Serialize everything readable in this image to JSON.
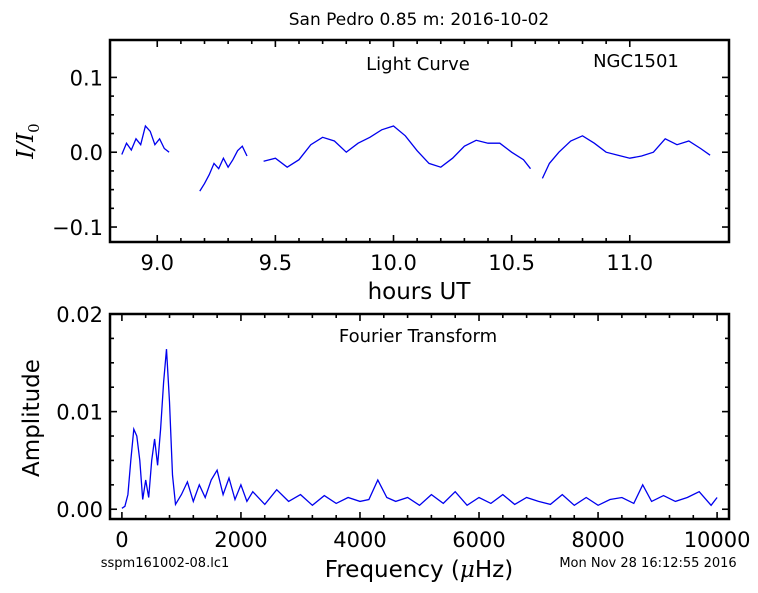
{
  "page": {
    "title": "San Pedro 0.85 m:  2016-10-02",
    "footer_left": "sspm161002-08.lc1",
    "footer_right": "Mon Nov 28 16:12:55 2016"
  },
  "colors": {
    "series": "#0000ee",
    "axes": "#000000"
  },
  "chart_data": [
    {
      "type": "line",
      "title": "Light Curve",
      "annotation": "NGC1501",
      "xlabel": "hours UT",
      "ylabel": "I/I",
      "ylabel_sub": "0",
      "xlim": [
        8.8,
        11.42
      ],
      "ylim": [
        -0.12,
        0.15
      ],
      "xticks": [
        9.0,
        9.5,
        10.0,
        10.5,
        11.0
      ],
      "xtick_labels": [
        "9.0",
        "9.5",
        "10.0",
        "10.5",
        "11.0"
      ],
      "yticks": [
        -0.1,
        0.0,
        0.1
      ],
      "ytick_labels": [
        "−0.1",
        "0.0",
        "0.1"
      ],
      "segments": [
        {
          "x": [
            8.85,
            8.87,
            8.89,
            8.91,
            8.93,
            8.95,
            8.97,
            8.99,
            9.01,
            9.03,
            9.05
          ],
          "y": [
            -0.003,
            0.012,
            0.003,
            0.018,
            0.01,
            0.035,
            0.028,
            0.01,
            0.018,
            0.005,
            0.0
          ]
        },
        {
          "x": [
            9.18,
            9.2,
            9.22,
            9.24,
            9.26,
            9.28,
            9.3,
            9.32,
            9.34,
            9.36,
            9.38
          ],
          "y": [
            -0.052,
            -0.042,
            -0.03,
            -0.015,
            -0.022,
            -0.008,
            -0.02,
            -0.01,
            0.002,
            0.008,
            -0.005
          ]
        },
        {
          "x": [
            9.45,
            9.5,
            9.55,
            9.6,
            9.65,
            9.7,
            9.75,
            9.8,
            9.85,
            9.9,
            9.95,
            10.0,
            10.05,
            10.1,
            10.15,
            10.2,
            10.25,
            10.3,
            10.35,
            10.4,
            10.45,
            10.5,
            10.55,
            10.58
          ],
          "y": [
            -0.012,
            -0.008,
            -0.02,
            -0.01,
            0.01,
            0.02,
            0.015,
            0.0,
            0.012,
            0.02,
            0.03,
            0.035,
            0.022,
            0.002,
            -0.015,
            -0.02,
            -0.008,
            0.008,
            0.016,
            0.012,
            0.012,
            0.0,
            -0.01,
            -0.022
          ]
        },
        {
          "x": [
            10.63,
            10.66,
            10.7,
            10.75,
            10.8,
            10.85,
            10.9,
            10.95,
            11.0,
            11.05,
            11.1,
            11.15,
            11.2,
            11.25,
            11.3,
            11.34
          ],
          "y": [
            -0.035,
            -0.015,
            0.0,
            0.015,
            0.022,
            0.012,
            0.0,
            -0.004,
            -0.008,
            -0.005,
            0.0,
            0.018,
            0.01,
            0.015,
            0.005,
            -0.004
          ]
        }
      ]
    },
    {
      "type": "line",
      "title": "Fourier Transform",
      "xlabel": "Frequency (",
      "xlabel_mu": "μ",
      "xlabel_tail": "Hz)",
      "ylabel": "Amplitude",
      "xlim": [
        -200,
        10200
      ],
      "ylim": [
        -0.001,
        0.02
      ],
      "xticks": [
        0,
        2000,
        4000,
        6000,
        8000,
        10000
      ],
      "xtick_labels": [
        "0",
        "2000",
        "4000",
        "6000",
        "8000",
        "10000"
      ],
      "yticks": [
        0.0,
        0.01,
        0.02
      ],
      "ytick_labels": [
        "0.00",
        "0.01",
        "0.02"
      ],
      "x": [
        0,
        50,
        100,
        150,
        200,
        250,
        300,
        350,
        400,
        450,
        500,
        550,
        600,
        650,
        700,
        750,
        800,
        850,
        900,
        1000,
        1100,
        1200,
        1300,
        1400,
        1500,
        1600,
        1700,
        1800,
        1900,
        2000,
        2100,
        2200,
        2400,
        2600,
        2800,
        3000,
        3200,
        3400,
        3600,
        3800,
        4000,
        4150,
        4300,
        4450,
        4600,
        4800,
        5000,
        5200,
        5400,
        5600,
        5800,
        6000,
        6200,
        6400,
        6600,
        6800,
        7000,
        7200,
        7400,
        7600,
        7800,
        8000,
        8200,
        8400,
        8600,
        8750,
        8900,
        9100,
        9300,
        9500,
        9700,
        9900,
        10000
      ],
      "y": [
        0.0001,
        0.0003,
        0.0015,
        0.005,
        0.0082,
        0.0075,
        0.005,
        0.001,
        0.003,
        0.0012,
        0.005,
        0.0072,
        0.0045,
        0.0082,
        0.013,
        0.0164,
        0.011,
        0.0035,
        0.0005,
        0.0015,
        0.0028,
        0.0008,
        0.0025,
        0.0012,
        0.003,
        0.004,
        0.0015,
        0.0032,
        0.001,
        0.0025,
        0.0008,
        0.0018,
        0.0005,
        0.002,
        0.0008,
        0.0015,
        0.0004,
        0.0014,
        0.0006,
        0.0012,
        0.0008,
        0.001,
        0.003,
        0.0012,
        0.0008,
        0.0012,
        0.0004,
        0.0015,
        0.0006,
        0.0018,
        0.0004,
        0.0012,
        0.0006,
        0.0015,
        0.0005,
        0.0012,
        0.0008,
        0.0005,
        0.0015,
        0.0004,
        0.0012,
        0.0004,
        0.001,
        0.0012,
        0.0006,
        0.0025,
        0.0008,
        0.0014,
        0.0008,
        0.0012,
        0.0018,
        0.0004,
        0.0012
      ]
    }
  ]
}
